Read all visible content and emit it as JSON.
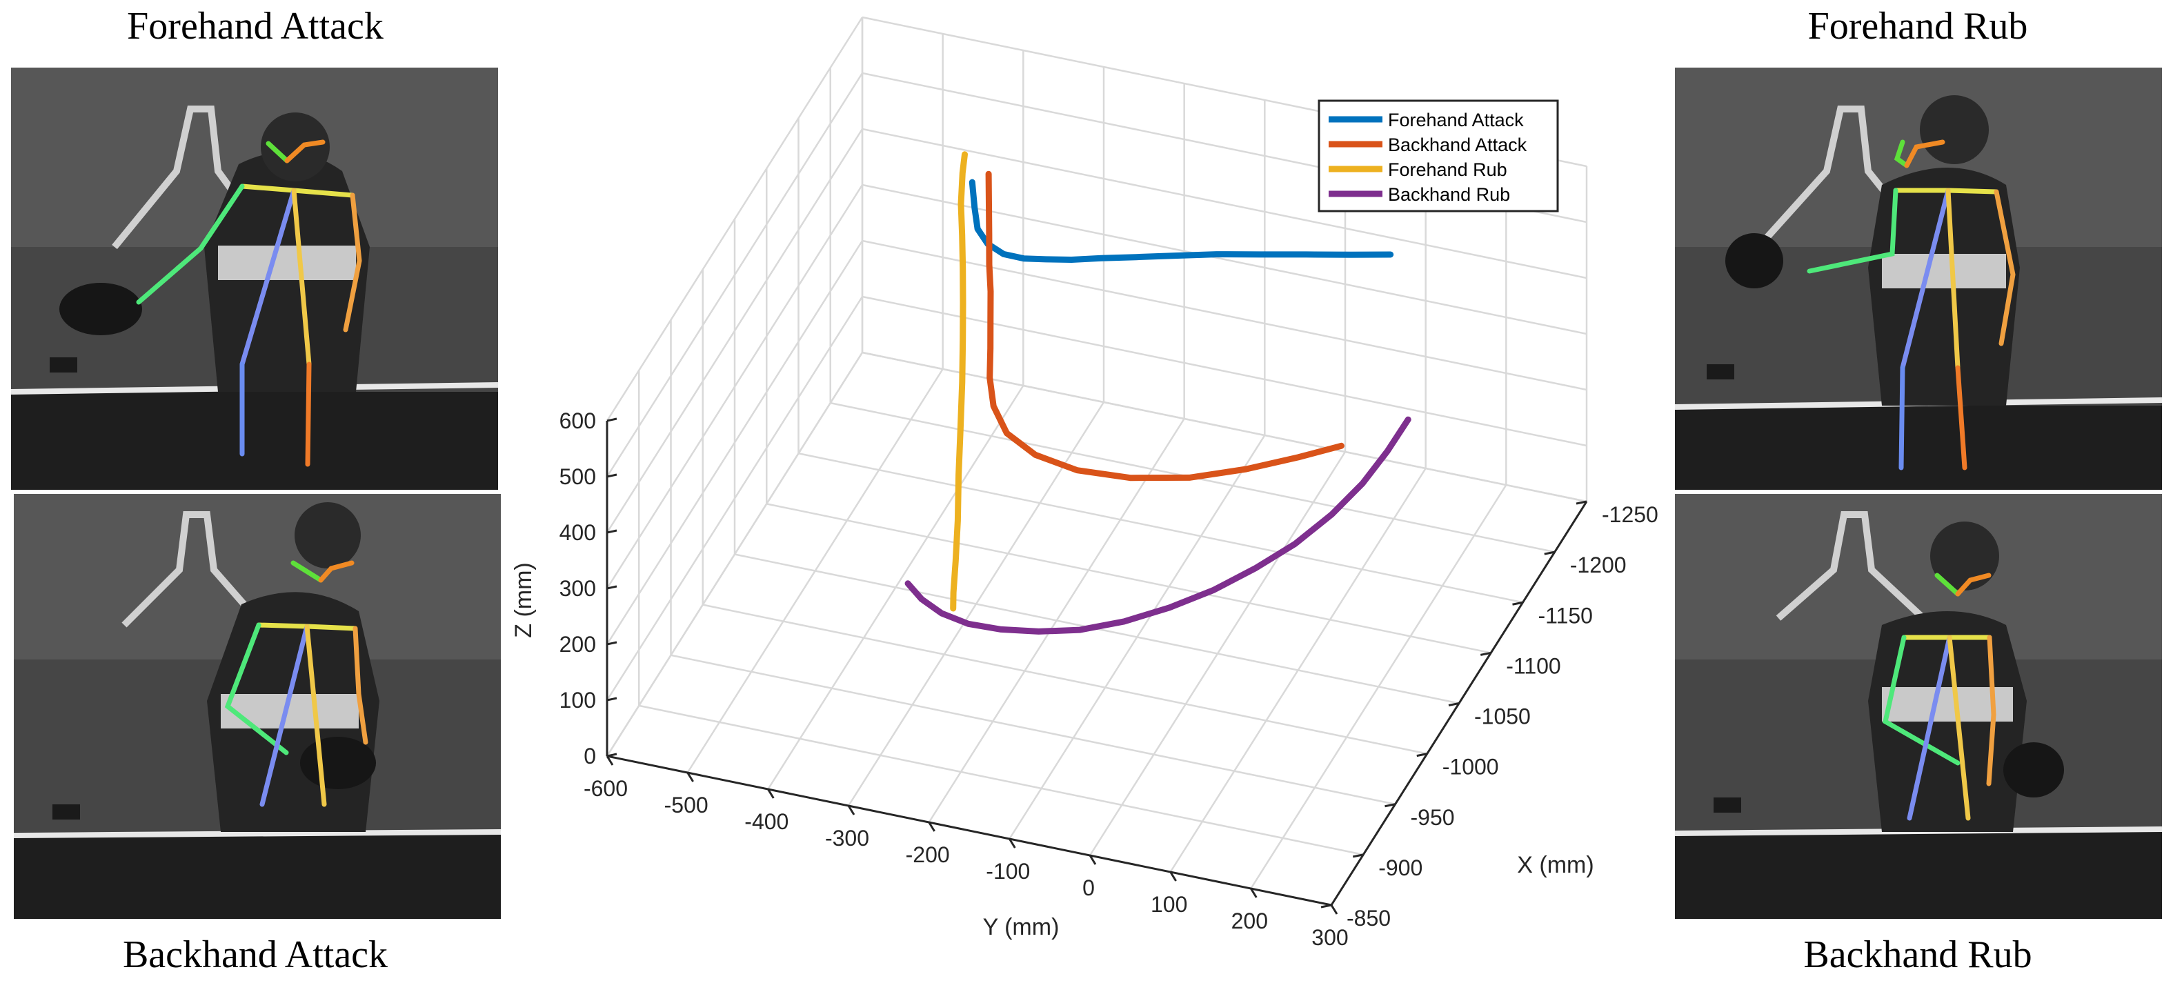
{
  "panels": {
    "forehand_attack": "Forehand Attack",
    "backhand_attack": "Backhand Attack",
    "forehand_rub": "Forehand Rub",
    "backhand_rub": "Backhand Rub"
  },
  "skeleton_colors": {
    "face_left": "#5ee03a",
    "face_right": "#f08a24",
    "shoulders": "#e6e24a",
    "left_arm": "#4ee87a",
    "right_arm": "#f0a040",
    "spine_left": "#7a8cf0",
    "spine_right": "#f0c848",
    "left_leg": "#6a8cf0",
    "right_leg": "#f07a28"
  },
  "chart_data": {
    "type": "line3d",
    "xlabel": "X (mm)",
    "ylabel": "Y (mm)",
    "zlabel": "Z (mm)",
    "xlim": [
      -1250,
      -850
    ],
    "ylim": [
      -600,
      300
    ],
    "zlim": [
      0,
      600
    ],
    "x_ticks": [
      "-1250",
      "-1200",
      "-1150",
      "-1100",
      "-1050",
      "-1000",
      "-950",
      "-900",
      "-850"
    ],
    "y_ticks": [
      "-600",
      "-500",
      "-400",
      "-300",
      "-200",
      "-100",
      "0",
      "100",
      "200",
      "300"
    ],
    "z_ticks": [
      "0",
      "100",
      "200",
      "300",
      "400",
      "500",
      "600"
    ],
    "grid": true,
    "legend_position": "top-right",
    "series": [
      {
        "name": "Forehand Attack",
        "color": "#0072BD",
        "points": [
          [
            -1233,
            -450,
            380
          ],
          [
            -1228,
            -443,
            345
          ],
          [
            -1220,
            -433,
            325
          ],
          [
            -1212,
            -414,
            318
          ],
          [
            -1203,
            -387,
            324
          ],
          [
            -1194,
            -355,
            342
          ],
          [
            -1186,
            -321,
            365
          ],
          [
            -1178,
            -283,
            390
          ],
          [
            -1172,
            -241,
            416
          ],
          [
            -1166,
            -193,
            443
          ],
          [
            -1161,
            -141,
            470
          ],
          [
            -1157,
            -86,
            496
          ],
          [
            -1153,
            -28,
            520
          ],
          [
            -1150,
            31,
            543
          ],
          [
            -1148,
            88,
            563
          ],
          [
            -1147,
            138,
            580
          ]
        ]
      },
      {
        "name": "Backhand Attack",
        "color": "#D95319",
        "points": [
          [
            -1226,
            -424,
            415
          ],
          [
            -1210,
            -411,
            393
          ],
          [
            -1194,
            -398,
            371
          ],
          [
            -1179,
            -386,
            349
          ],
          [
            -1166,
            -374,
            328
          ],
          [
            -1152,
            -363,
            306
          ],
          [
            -1138,
            -352,
            283
          ],
          [
            -1123,
            -341,
            261
          ],
          [
            -1110,
            -326,
            238
          ],
          [
            -1098,
            -300,
            219
          ],
          [
            -1090,
            -258,
            207
          ],
          [
            -1086,
            -203,
            203
          ],
          [
            -1086,
            -137,
            209
          ],
          [
            -1089,
            -66,
            225
          ],
          [
            -1095,
            0,
            249
          ],
          [
            -1102,
            59,
            275
          ],
          [
            -1109,
            107,
            297
          ]
        ]
      },
      {
        "name": "Forehand Rub",
        "color": "#EDB120",
        "points": [
          [
            -1234,
            -460,
            425
          ],
          [
            -1233,
            -462,
            393
          ],
          [
            -1228,
            -460,
            347
          ],
          [
            -1221,
            -453,
            306
          ],
          [
            -1212,
            -445,
            266
          ],
          [
            -1201,
            -436,
            226
          ],
          [
            -1188,
            -426,
            186
          ],
          [
            -1172,
            -414,
            143
          ],
          [
            -1153,
            -401,
            100
          ],
          [
            -1131,
            -386,
            59
          ],
          [
            -1107,
            -368,
            26
          ],
          [
            -1081,
            -350,
            6
          ],
          [
            -1056,
            -333,
            0
          ],
          [
            -1038,
            -319,
            8
          ]
        ]
      },
      {
        "name": "Backhand Rub",
        "color": "#7E2F8E",
        "points": [
          [
            -1015,
            -357,
            83
          ],
          [
            -1015,
            -340,
            60
          ],
          [
            -1015,
            -315,
            42
          ],
          [
            -1015,
            -282,
            33
          ],
          [
            -1016,
            -242,
            33
          ],
          [
            -1018,
            -197,
            39
          ],
          [
            -1021,
            -148,
            51
          ],
          [
            -1027,
            -98,
            70
          ],
          [
            -1036,
            -49,
            93
          ],
          [
            -1047,
            -3,
            118
          ],
          [
            -1061,
            38,
            144
          ],
          [
            -1077,
            75,
            170
          ],
          [
            -1095,
            106,
            199
          ],
          [
            -1113,
            130,
            229
          ],
          [
            -1131,
            147,
            260
          ],
          [
            -1148,
            159,
            289
          ]
        ]
      }
    ]
  }
}
